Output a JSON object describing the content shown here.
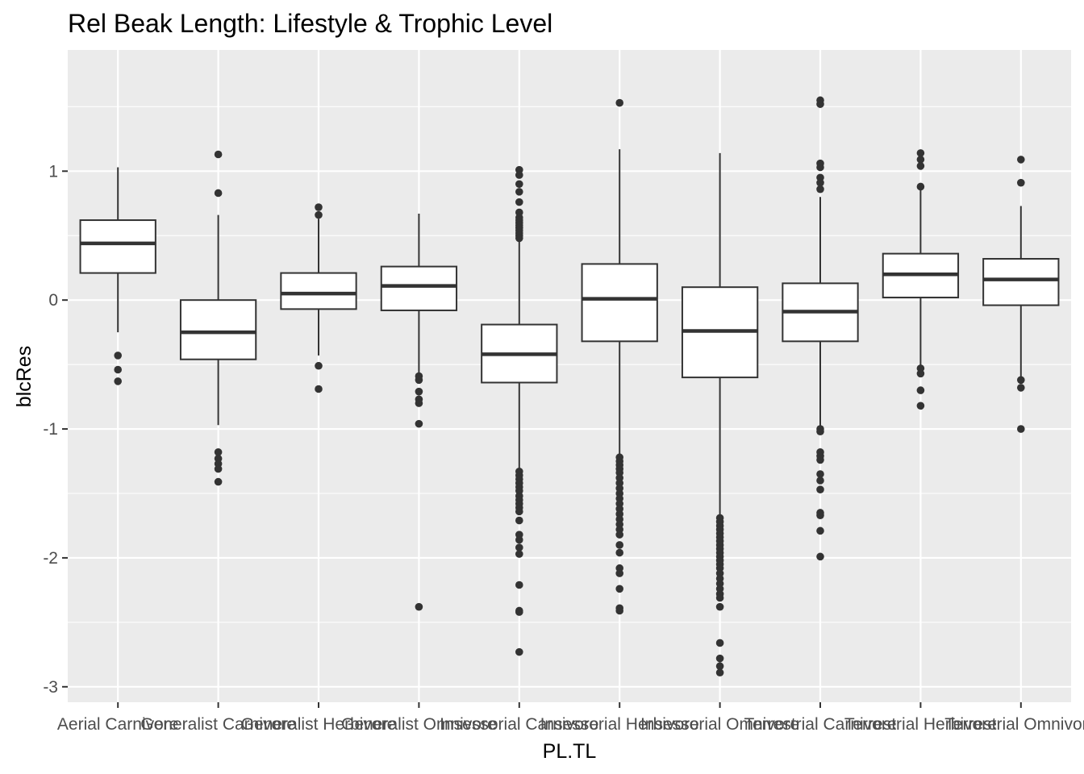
{
  "chart_data": {
    "type": "boxplot",
    "title": "Rel Beak Length: Lifestyle & Trophic Level",
    "xlabel": "PL.TL",
    "ylabel": "blcRes",
    "ylim": [
      -3.12,
      1.94
    ],
    "yticks": [
      1,
      0,
      -1,
      -2,
      -3
    ],
    "ytick_labels": [
      "1",
      "0",
      "-1",
      "-2",
      "-3"
    ],
    "grid": true,
    "legend": "none",
    "colors": {
      "panel_bg": "#ebebeb",
      "grid_major": "#ffffff",
      "box_fill": "#ffffff",
      "box_stroke": "#333333",
      "outlier": "#333333",
      "tick_text": "#4d4d4d"
    },
    "categories": [
      "Aerial Carnivore",
      "Generalist Carnivore",
      "Generalist Herbivore",
      "Generalist Omnivore",
      "Insessorial Carnivore",
      "Insessorial Herbivore",
      "Insessorial Omnivore",
      "Terrestrial Carnivore",
      "Terrestrial Herbivore",
      "Terrestrial Omnivore"
    ],
    "boxes": [
      {
        "lower_whisker": -0.25,
        "q1": 0.21,
        "median": 0.44,
        "q3": 0.62,
        "upper_whisker": 1.03,
        "outliers": [
          -0.43,
          -0.54,
          -0.63
        ]
      },
      {
        "lower_whisker": -0.97,
        "q1": -0.46,
        "median": -0.25,
        "q3": 0.0,
        "upper_whisker": 0.66,
        "outliers": [
          1.13,
          0.83,
          -1.18,
          -1.23,
          -1.27,
          -1.31,
          -1.41
        ]
      },
      {
        "lower_whisker": -0.43,
        "q1": -0.07,
        "median": 0.05,
        "q3": 0.21,
        "upper_whisker": 0.63,
        "outliers": [
          0.72,
          0.66,
          -0.51,
          -0.69
        ]
      },
      {
        "lower_whisker": -0.58,
        "q1": -0.08,
        "median": 0.11,
        "q3": 0.26,
        "upper_whisker": 0.67,
        "outliers": [
          -0.59,
          -0.62,
          -0.71,
          -0.77,
          -0.8,
          -0.96,
          -2.38
        ]
      },
      {
        "lower_whisker": -1.31,
        "q1": -0.64,
        "median": -0.42,
        "q3": -0.19,
        "upper_whisker": 0.47,
        "outliers": [
          1.01,
          0.97,
          0.9,
          0.84,
          0.76,
          0.68,
          0.64,
          0.62,
          0.6,
          0.58,
          0.56,
          0.54,
          0.52,
          0.5,
          0.48,
          -1.33,
          -1.36,
          -1.39,
          -1.42,
          -1.45,
          -1.48,
          -1.52,
          -1.55,
          -1.58,
          -1.61,
          -1.64,
          -1.71,
          -1.82,
          -1.86,
          -1.92,
          -1.97,
          -2.21,
          -2.41,
          -2.42,
          -2.73
        ]
      },
      {
        "lower_whisker": -1.2,
        "q1": -0.32,
        "median": 0.01,
        "q3": 0.28,
        "upper_whisker": 1.17,
        "outliers": [
          1.53,
          -1.22,
          -1.25,
          -1.28,
          -1.31,
          -1.34,
          -1.38,
          -1.42,
          -1.46,
          -1.5,
          -1.54,
          -1.58,
          -1.62,
          -1.66,
          -1.7,
          -1.74,
          -1.78,
          -1.82,
          -1.9,
          -1.96,
          -2.08,
          -2.12,
          -2.24,
          -2.39,
          -2.41
        ]
      },
      {
        "lower_whisker": -1.68,
        "q1": -0.6,
        "median": -0.24,
        "q3": 0.1,
        "upper_whisker": 1.14,
        "outliers": [
          -1.69,
          -1.72,
          -1.75,
          -1.78,
          -1.81,
          -1.84,
          -1.87,
          -1.9,
          -1.93,
          -1.96,
          -1.99,
          -2.02,
          -2.05,
          -2.08,
          -2.12,
          -2.16,
          -2.2,
          -2.24,
          -2.28,
          -2.31,
          -2.38,
          -2.66,
          -2.78,
          -2.84,
          -2.89
        ]
      },
      {
        "lower_whisker": -0.99,
        "q1": -0.32,
        "median": -0.09,
        "q3": 0.13,
        "upper_whisker": 0.8,
        "outliers": [
          1.55,
          1.52,
          1.06,
          1.03,
          0.95,
          0.91,
          0.86,
          -1.0,
          -1.02,
          -1.18,
          -1.21,
          -1.24,
          -1.35,
          -1.4,
          -1.47,
          -1.65,
          -1.67,
          -1.79,
          -1.99
        ]
      },
      {
        "lower_whisker": -0.52,
        "q1": 0.02,
        "median": 0.2,
        "q3": 0.36,
        "upper_whisker": 0.86,
        "outliers": [
          1.14,
          1.09,
          1.04,
          0.88,
          -0.53,
          -0.57,
          -0.7,
          -0.82
        ]
      },
      {
        "lower_whisker": -0.61,
        "q1": -0.04,
        "median": 0.16,
        "q3": 0.32,
        "upper_whisker": 0.73,
        "outliers": [
          1.09,
          0.91,
          -0.62,
          -0.68,
          -1.0
        ]
      }
    ]
  }
}
